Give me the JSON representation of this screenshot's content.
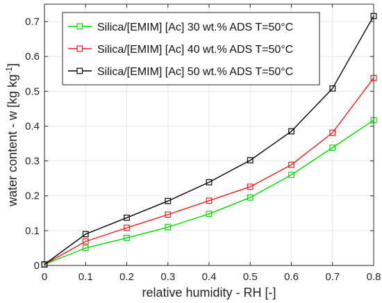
{
  "chart_data": {
    "type": "line",
    "xlabel": "relative humidity - RH [-]",
    "ylabel_main": "water content - w [kg kg",
    "ylabel_sup": "-1",
    "ylabel_close": "]",
    "xlim": [
      0,
      0.8
    ],
    "ylim": [
      0,
      0.75
    ],
    "x_ticks": [
      "0",
      "0.1",
      "0.2",
      "0.3",
      "0.4",
      "0.5",
      "0.6",
      "0.7",
      "0.8"
    ],
    "y_ticks": [
      "0",
      "0.1",
      "0.2",
      "0.3",
      "0.4",
      "0.5",
      "0.6",
      "0.7"
    ],
    "grid": true,
    "legend_position": "top-left",
    "x": [
      0,
      0.1,
      0.2,
      0.3,
      0.4,
      0.5,
      0.6,
      0.7,
      0.8
    ],
    "series": [
      {
        "name": "Silica/[EMIM] [Ac] 30 wt.% ADS T=50°C",
        "color": "#00d400",
        "values": [
          0.003,
          0.05,
          0.079,
          0.11,
          0.148,
          0.195,
          0.26,
          0.338,
          0.417
        ]
      },
      {
        "name": "Silica/[EMIM] [Ac] 40 wt.% ADS T=50°C",
        "color": "#e0201b",
        "values": [
          0.003,
          0.069,
          0.108,
          0.146,
          0.186,
          0.226,
          0.289,
          0.381,
          0.538
        ]
      },
      {
        "name": "Silica/[EMIM] [Ac] 50 wt.% ADS T=50°C",
        "color": "#000000",
        "values": [
          0.003,
          0.09,
          0.137,
          0.185,
          0.239,
          0.302,
          0.385,
          0.508,
          0.716
        ]
      }
    ]
  }
}
